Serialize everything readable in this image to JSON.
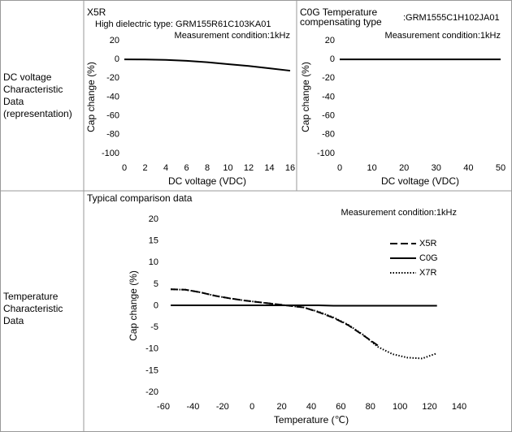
{
  "table": {
    "rows": [
      [
        "DC voltage Characteristic Data (representation)"
      ],
      [
        "Temperature Characteristic Data"
      ]
    ]
  },
  "chart_data": [
    {
      "type": "line",
      "title": "X5R",
      "subtitle": "High dielectric type: GRM155R61C103KA01",
      "annotation": "Measurement condition:1kHz",
      "x_label": "DC voltage (VDC)",
      "y_label": "Cap change (%)",
      "x": [
        0,
        2,
        4,
        6,
        8,
        10,
        12,
        14,
        16
      ],
      "series": [
        {
          "name": "X5R",
          "color": "#000000",
          "style": "solid",
          "values": [
            0,
            -0.1,
            -0.5,
            -1.5,
            -3,
            -5,
            -7,
            -9.5,
            -12
          ]
        }
      ],
      "xlim": [
        0,
        16
      ],
      "ylim": [
        -100,
        20
      ],
      "xticks": [
        0,
        2,
        4,
        6,
        8,
        10,
        12,
        14,
        16
      ],
      "yticks": [
        20,
        0,
        -20,
        -40,
        -60,
        -80,
        -100
      ]
    },
    {
      "type": "line",
      "title": "C0G Temperature compensating type",
      "subtitle": ":GRM1555C1H102JA01",
      "annotation": "Measurement condition:1kHz",
      "x_label": "DC voltage (VDC)",
      "y_label": "Cap change (%)",
      "x": [
        0,
        10,
        20,
        30,
        40,
        50
      ],
      "series": [
        {
          "name": "C0G",
          "color": "#000000",
          "style": "solid",
          "values": [
            0,
            0,
            0,
            0,
            0,
            0
          ]
        }
      ],
      "xlim": [
        0,
        50
      ],
      "ylim": [
        -100,
        20
      ],
      "xticks": [
        0,
        10,
        20,
        30,
        40,
        50
      ],
      "yticks": [
        20,
        0,
        -20,
        -40,
        -60,
        -80,
        -100
      ]
    },
    {
      "type": "line",
      "title": "Typical comparison data",
      "annotation": "Measurement condition:1kHz",
      "x_label": "Temperature (℃)",
      "y_label": "Cap change (%)",
      "legend": "upper right",
      "x": [
        -55,
        -45,
        -35,
        -25,
        -15,
        -5,
        5,
        15,
        25,
        35,
        45,
        55,
        65,
        75,
        85,
        95,
        105,
        115,
        125
      ],
      "series": [
        {
          "name": "X5R",
          "color": "#000000",
          "style": "dashed",
          "values": [
            3.8,
            3.7,
            3.1,
            2.3,
            1.7,
            1.2,
            0.8,
            0.4,
            0,
            -0.4,
            -1.5,
            -2.8,
            -4.5,
            -6.8,
            -9.2,
            null,
            null,
            null,
            null
          ]
        },
        {
          "name": "C0G",
          "color": "#000000",
          "style": "solid",
          "values": [
            0.1,
            0.1,
            0.1,
            0.1,
            0.1,
            0.1,
            0.1,
            0.1,
            0.1,
            0.1,
            0.1,
            0,
            0,
            0,
            0,
            0,
            0,
            0,
            0
          ]
        },
        {
          "name": "X7R",
          "color": "#000000",
          "style": "dotted",
          "values": [
            3.8,
            3.7,
            3.1,
            2.3,
            1.7,
            1.2,
            0.8,
            0.4,
            0,
            -0.4,
            -1.4,
            -2.7,
            -4.4,
            -6.7,
            -9.5,
            -11.2,
            -12,
            -12.2,
            -11
          ]
        }
      ],
      "xlim": [
        -60,
        140
      ],
      "ylim": [
        -20,
        20
      ],
      "xticks": [
        -60,
        -40,
        -20,
        0,
        20,
        40,
        60,
        80,
        100,
        120,
        140
      ],
      "yticks": [
        20,
        15,
        10,
        5,
        0,
        -5,
        -10,
        -15,
        -20
      ]
    }
  ]
}
